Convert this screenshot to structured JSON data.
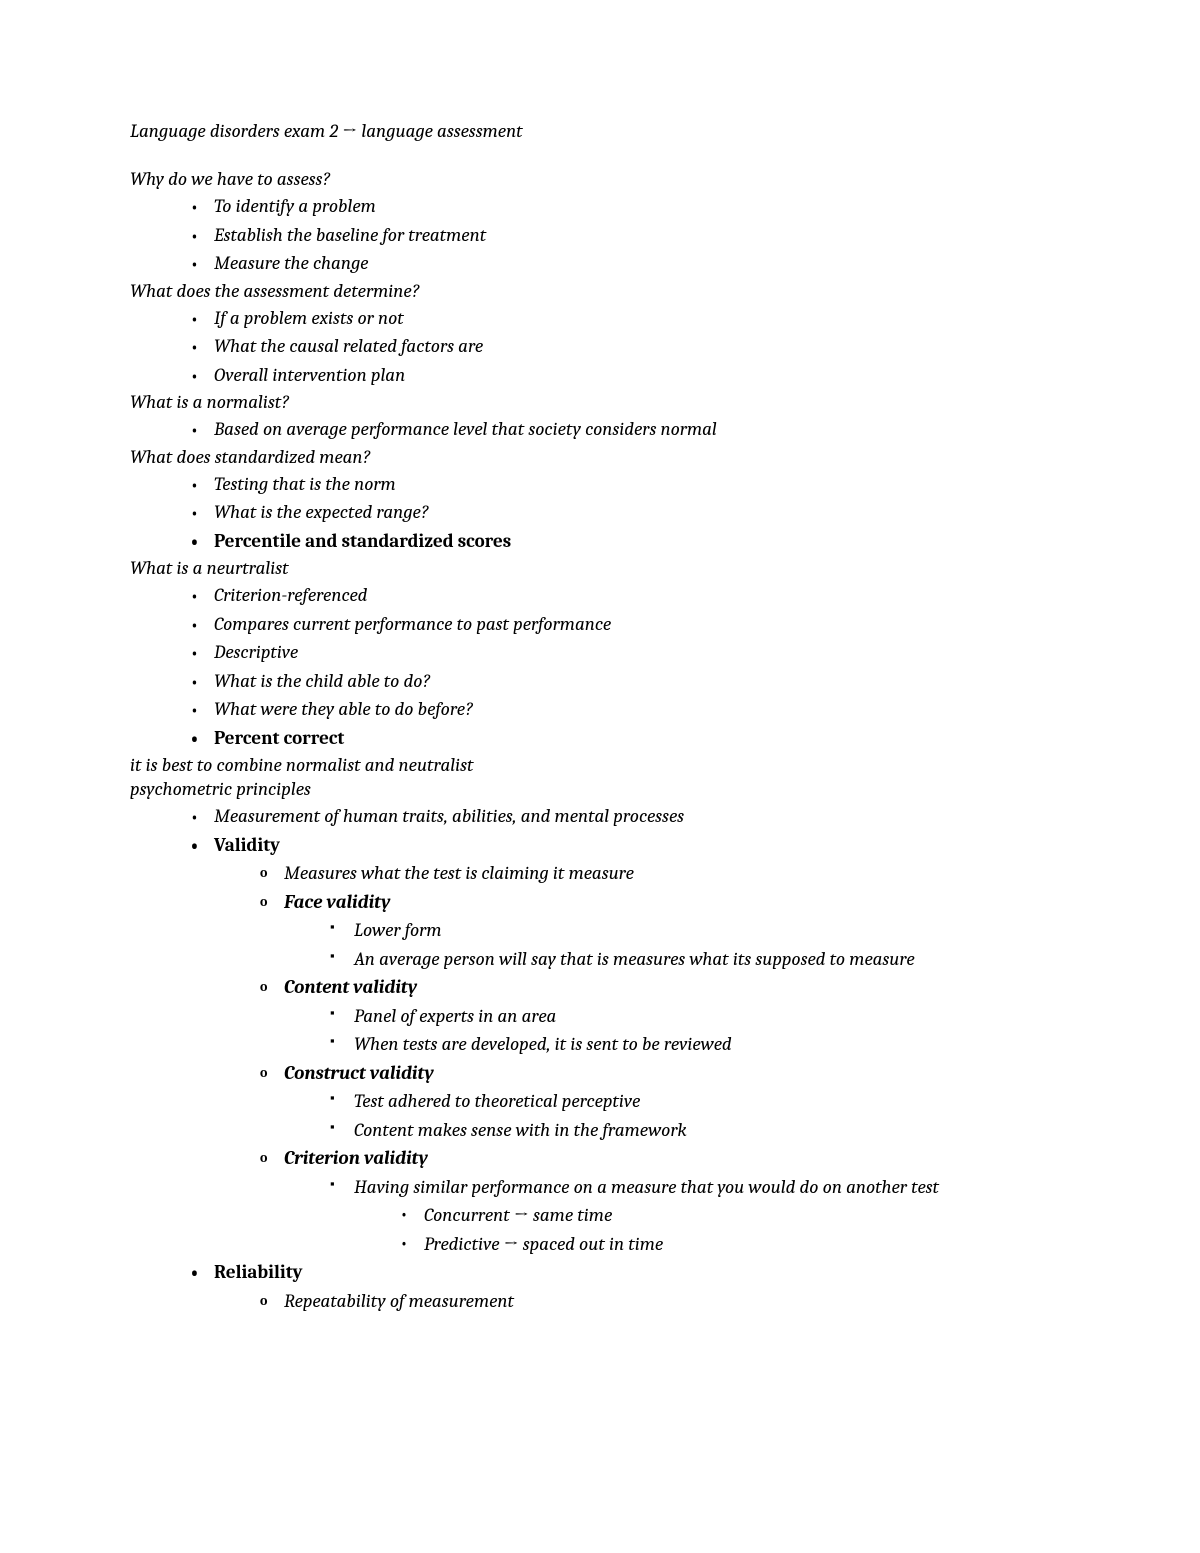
{
  "title_part1": "Language disorders exam 2 ",
  "title_arrow": "→",
  "title_part2": " language assessment",
  "sections": {
    "s1_heading": "Why do we have to assess?",
    "s1_items": [
      "To identify a problem",
      "Establish the baseline for treatment",
      "Measure the change"
    ],
    "s2_heading": "What does the assessment determine?",
    "s2_items": [
      "If a problem exists or not",
      "What the causal related factors are",
      "Overall intervention plan"
    ],
    "s3_heading": "What is a normalist?",
    "s3_items": [
      "Based on average performance level that society considers normal"
    ],
    "s4_heading": "What does standardized mean?",
    "s4_items": [
      "Testing that is the norm",
      "What is the expected range?"
    ],
    "s4_bold": "Percentile and standardized scores",
    "s5_heading": "What is a neurtralist",
    "s5_items": [
      "Criterion-referenced",
      "Compares current performance to past performance",
      "Descriptive",
      "What is the child able to do?",
      "What were they able to do before?"
    ],
    "s5_bold": "Percent correct",
    "s6_line1": "it is best to combine normalist and neutralist",
    "s6_line2": "psychometric principles",
    "s6_item1": "Measurement of human traits, abilities, and mental processes",
    "s6_validity": "Validity",
    "s6_validity_sub1": "Measures what the test is claiming it measure",
    "s6_face": "Face validity",
    "s6_face_items": [
      "Lower form",
      "An average person will say that is measures what its supposed to measure"
    ],
    "s6_content": "Content validity",
    "s6_content_items": [
      "Panel of experts in an area",
      "When tests are developed, it is sent to be reviewed"
    ],
    "s6_construct": "Construct validity",
    "s6_construct_items": [
      "Test adhered to theoretical perceptive",
      "Content makes sense with in the framework"
    ],
    "s6_criterion": "Criterion validity",
    "s6_criterion_item": "Having similar performance on a measure that you would do on another test",
    "s6_concurrent_pre": "Concurrent ",
    "s6_concurrent_post": " same time",
    "s6_predictive_pre": "Predictive ",
    "s6_predictive_post": " spaced out in time",
    "s6_reliability": "Reliability",
    "s6_reliability_sub": "Repeatability of measurement",
    "arrow": "→"
  }
}
